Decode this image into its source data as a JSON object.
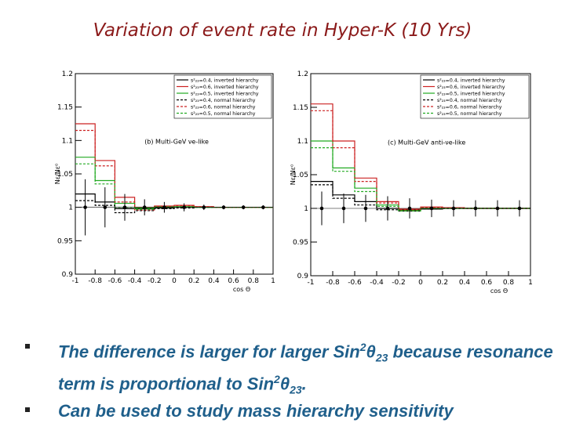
{
  "slide": {
    "title": "Variation of event rate in Hyper-K (10 Yrs)"
  },
  "chart_data": [
    {
      "type": "line",
      "step": true,
      "panel_label": "(b) Multi-GeV νe-like",
      "xlabel": "cos Θ",
      "ylabel": "Nε/Nε⁰",
      "xlim": [
        -1,
        1
      ],
      "ylim": [
        0.9,
        1.2
      ],
      "xticks": [
        "-1",
        "-0.8",
        "-0.6",
        "-0.4",
        "-0.2",
        "0",
        "0.2",
        "0.4",
        "0.6",
        "0.8",
        "1"
      ],
      "yticks": [
        "0.9",
        "0.95",
        "1",
        "1.05",
        "1.1",
        "1.15",
        "1.2"
      ],
      "legend_position": "top-right",
      "bin_edges": [
        -1,
        -0.8,
        -0.6,
        -0.4,
        -0.2,
        0,
        0.2,
        0.4,
        0.6,
        0.8,
        1
      ],
      "reference": {
        "centers": [
          -0.9,
          -0.7,
          -0.5,
          -0.3,
          -0.1,
          0.1,
          0.3,
          0.5,
          0.7,
          0.9
        ],
        "values": [
          1,
          1,
          1,
          1,
          1,
          1,
          1,
          1,
          1,
          1
        ],
        "errors": [
          0.042,
          0.03,
          0.02,
          0.012,
          0.008,
          0.006,
          0.004,
          0.003,
          0.003,
          0.003
        ]
      },
      "series": [
        {
          "name": "s²₂₃=0.4, inverted hierarchy",
          "color": "#000000",
          "dash": "solid",
          "values": [
            1.02,
            1.008,
            0.998,
            0.998,
            0.999,
            1.0,
            1.0,
            1.0,
            1.0,
            1.0
          ]
        },
        {
          "name": "s²₂₃=0.6, inverted hierarchy",
          "color": "#cc2222",
          "dash": "solid",
          "values": [
            1.125,
            1.07,
            1.015,
            1.0,
            1.002,
            1.003,
            1.001,
            1.0,
            1.0,
            1.0
          ]
        },
        {
          "name": "s²₂₃=0.5, inverted hierarchy",
          "color": "#22aa22",
          "dash": "solid",
          "values": [
            1.075,
            1.04,
            1.006,
            0.999,
            1.001,
            1.001,
            1.0,
            1.0,
            1.0,
            1.0
          ]
        },
        {
          "name": "s²₂₃=0.4, normal hierarchy",
          "color": "#000000",
          "dash": "dashed",
          "values": [
            1.01,
            1.003,
            0.992,
            0.995,
            0.998,
            0.999,
            1.0,
            1.0,
            1.0,
            1.0
          ]
        },
        {
          "name": "s²₂₃=0.6, normal hierarchy",
          "color": "#cc2222",
          "dash": "dashed",
          "values": [
            1.115,
            1.062,
            1.008,
            0.996,
            1.001,
            1.002,
            1.001,
            1.0,
            1.0,
            1.0
          ]
        },
        {
          "name": "s²₂₃=0.5, normal hierarchy",
          "color": "#22aa22",
          "dash": "dashed",
          "values": [
            1.065,
            1.035,
            1.0,
            0.997,
            1.0,
            1.001,
            1.0,
            1.0,
            1.0,
            1.0
          ]
        }
      ]
    },
    {
      "type": "line",
      "step": true,
      "panel_label": "(c) Multi-GeV anti-νe-like",
      "xlabel": "cos Θ",
      "ylabel": "Nε/Nε⁰",
      "xlim": [
        -1,
        1
      ],
      "ylim": [
        0.9,
        1.2
      ],
      "xticks": [
        "-1",
        "-0.8",
        "-0.6",
        "-0.4",
        "-0.2",
        "0",
        "0.2",
        "0.4",
        "0.6",
        "0.8",
        "1"
      ],
      "yticks": [
        "0.9",
        "0.95",
        "1",
        "1.05",
        "1.1",
        "1.15",
        "1.2"
      ],
      "legend_position": "top-right",
      "bin_edges": [
        -1,
        -0.8,
        -0.6,
        -0.4,
        -0.2,
        0,
        0.2,
        0.4,
        0.6,
        0.8,
        1
      ],
      "reference": {
        "centers": [
          -0.9,
          -0.7,
          -0.5,
          -0.3,
          -0.1,
          0.1,
          0.3,
          0.5,
          0.7,
          0.9
        ],
        "values": [
          1,
          1,
          1,
          1,
          1,
          1,
          1,
          1,
          1,
          1
        ],
        "errors": [
          0.025,
          0.022,
          0.02,
          0.018,
          0.015,
          0.013,
          0.012,
          0.012,
          0.012,
          0.012
        ]
      },
      "series": [
        {
          "name": "s²₂₃=0.4, inverted hierarchy",
          "color": "#000000",
          "dash": "solid",
          "values": [
            1.04,
            1.02,
            1.01,
            1.0,
            0.998,
            0.999,
            1.0,
            1.0,
            1.0,
            1.0
          ]
        },
        {
          "name": "s²₂₃=0.6, inverted hierarchy",
          "color": "#cc2222",
          "dash": "solid",
          "values": [
            1.155,
            1.1,
            1.045,
            1.01,
            0.999,
            1.002,
            1.001,
            1.0,
            1.0,
            1.0
          ]
        },
        {
          "name": "s²₂₃=0.5, inverted hierarchy",
          "color": "#22aa22",
          "dash": "solid",
          "values": [
            1.1,
            1.06,
            1.03,
            1.005,
            0.997,
            1.0,
            1.0,
            1.0,
            1.0,
            1.0
          ]
        },
        {
          "name": "s²₂₃=0.4, normal hierarchy",
          "color": "#000000",
          "dash": "dashed",
          "values": [
            1.035,
            1.015,
            1.005,
            0.998,
            0.996,
            0.999,
            1.0,
            1.0,
            1.0,
            1.0
          ]
        },
        {
          "name": "s²₂₃=0.6, normal hierarchy",
          "color": "#cc2222",
          "dash": "dashed",
          "values": [
            1.145,
            1.09,
            1.04,
            1.008,
            0.998,
            1.001,
            1.001,
            1.0,
            1.0,
            1.0
          ]
        },
        {
          "name": "s²₂₃=0.5, normal hierarchy",
          "color": "#22aa22",
          "dash": "dashed",
          "values": [
            1.09,
            1.055,
            1.025,
            1.003,
            0.996,
            1.0,
            1.0,
            1.0,
            1.0,
            1.0
          ]
        }
      ]
    }
  ],
  "bullets": {
    "b1_pre": "The difference is larger for larger Sin",
    "b1_sup": "2",
    "b1_theta": "θ",
    "b1_sub": "23",
    "b1_mid": " because resonance term is proportional to Sin",
    "b1_sup2": "2",
    "b1_theta2": "θ",
    "b1_sub2": "23",
    "b1_post": ".",
    "b2": "Can be used to study mass hierarchy sensitivity"
  }
}
